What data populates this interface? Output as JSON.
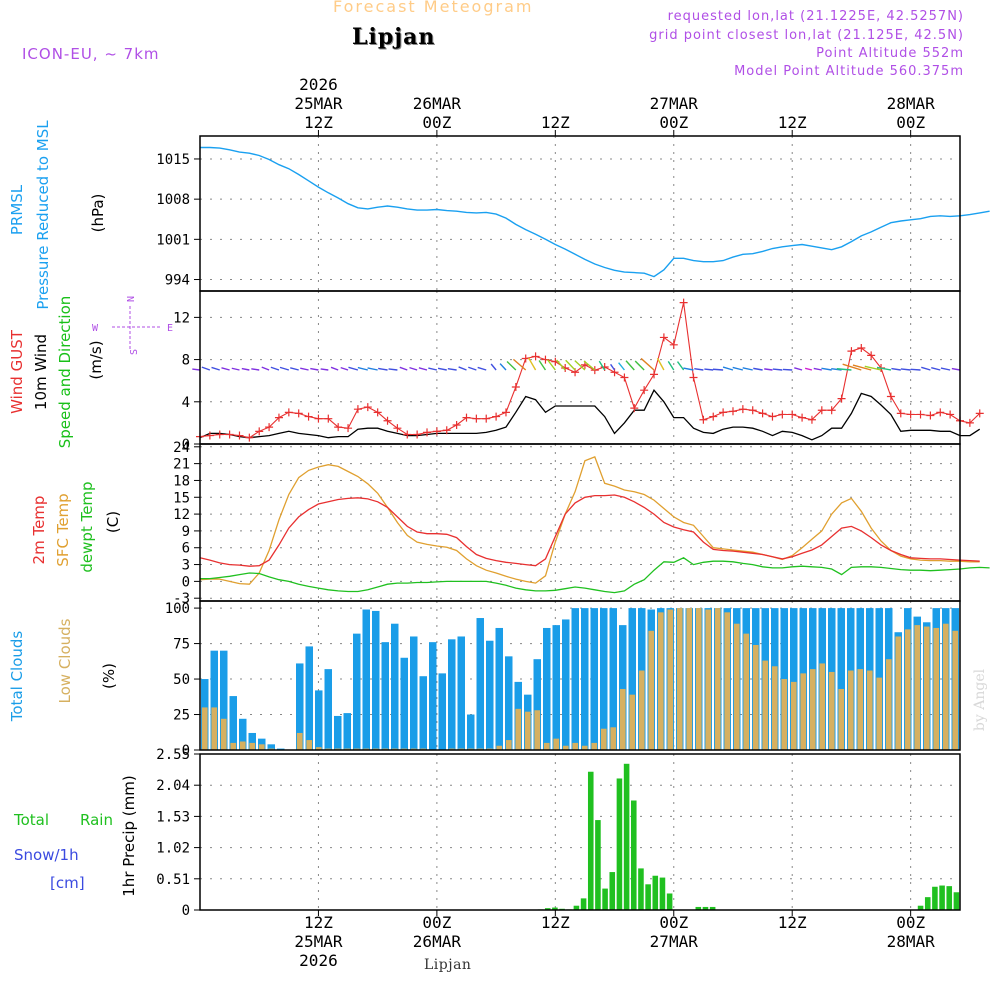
{
  "header": {
    "title": "Forecast Meteogram",
    "location": "Lipjan",
    "model": "ICON-EU, ~ 7km",
    "requested": "requested lon,lat (21.1225E, 42.5257N)",
    "gridpoint": "grid point closest lon,lat (21.125E, 42.5N)",
    "point_altitude": "Point Altitude 552m",
    "model_altitude": "Model Point Altitude 560.375m",
    "footer_location": "Lipjan",
    "watermark": "by Angel"
  },
  "colors": {
    "pressure": "#1aa0f0",
    "gust": "#e83030",
    "wind": "#000000",
    "direction_label": "#18c018",
    "temp2m": "#e83030",
    "sfc": "#e0a030",
    "dew": "#20c020",
    "total_clouds": "#1a9de8",
    "low_clouds": "#d6b060",
    "rain": "#20c020",
    "snow": "#3a4ae0",
    "title": "#ffcc88",
    "info": "#b04fe6"
  },
  "time_axis": {
    "top": [
      {
        "pos": 12,
        "lines": [
          "2026",
          "25MAR",
          "12Z"
        ]
      },
      {
        "pos": 24,
        "lines": [
          "26MAR",
          "00Z"
        ]
      },
      {
        "pos": 36,
        "lines": [
          "12Z"
        ]
      },
      {
        "pos": 48,
        "lines": [
          "27MAR",
          "00Z"
        ]
      },
      {
        "pos": 60,
        "lines": [
          "12Z"
        ]
      },
      {
        "pos": 72,
        "lines": [
          "28MAR",
          "00Z"
        ]
      }
    ],
    "bottom": [
      {
        "pos": 12,
        "lines": [
          "12Z",
          "25MAR",
          "2026"
        ]
      },
      {
        "pos": 24,
        "lines": [
          "00Z",
          "26MAR"
        ]
      },
      {
        "pos": 36,
        "lines": [
          "12Z"
        ]
      },
      {
        "pos": 48,
        "lines": [
          "00Z",
          "27MAR"
        ]
      },
      {
        "pos": 60,
        "lines": [
          "12Z"
        ]
      },
      {
        "pos": 72,
        "lines": [
          "00Z",
          "28MAR"
        ]
      }
    ]
  },
  "panel_labels": {
    "pressure": {
      "a": "PRMSL",
      "b": "Pressure Reduced to MSL",
      "unit": "(hPa)"
    },
    "wind": {
      "a": "Wind GUST",
      "b": "10m Wind",
      "c": "Speed and Direction",
      "unit": "(m/s)",
      "compass_n": "N",
      "compass_s": "S",
      "compass_w": "W",
      "compass_e": "E"
    },
    "temp": {
      "a": "2m Temp",
      "b": "SFC Temp",
      "c": "dewpt Temp",
      "unit": "(C)"
    },
    "clouds": {
      "a": "Total Clouds",
      "b": "Low Clouds",
      "unit": "(%)"
    },
    "precip": {
      "a": "Total",
      "a2": "Rain",
      "b": "Snow/1h",
      "c": "[cm]",
      "unit": "1hr Precip (mm)"
    }
  },
  "chart_data": [
    {
      "type": "line",
      "id": "pressure",
      "title": "PRMSL Pressure Reduced to MSL",
      "ylabel": "(hPa)",
      "ylim": [
        992,
        1019
      ],
      "yticks": [
        994,
        1001,
        1008,
        1015
      ],
      "x_hours_from_25MAR00Z": [
        0,
        77
      ],
      "series": [
        {
          "name": "PRMSL",
          "values": [
            1017.0,
            1017.0,
            1016.9,
            1016.6,
            1016.2,
            1016.0,
            1015.6,
            1014.9,
            1014.0,
            1013.3,
            1012.3,
            1011.2,
            1010.1,
            1009.1,
            1008.2,
            1007.2,
            1006.5,
            1006.3,
            1006.6,
            1006.8,
            1006.6,
            1006.3,
            1006.1,
            1006.1,
            1006.2,
            1006.0,
            1005.9,
            1005.7,
            1005.6,
            1005.7,
            1005.4,
            1004.7,
            1003.6,
            1002.7,
            1001.9,
            1001.0,
            1000.1,
            999.3,
            998.4,
            997.5,
            996.7,
            996.1,
            995.6,
            995.3,
            995.2,
            995.1,
            994.5,
            995.7,
            997.7,
            997.7,
            997.3,
            997.1,
            997.1,
            997.3,
            997.9,
            998.4,
            998.5,
            998.9,
            999.4,
            999.7,
            999.9,
            1000.1,
            999.8,
            999.5,
            999.2,
            999.7,
            1000.6,
            1001.6,
            1002.3,
            1003.1,
            1003.9,
            1004.2,
            1004.4,
            1004.6,
            1005.0,
            1005.1,
            1005.0,
            1005.1,
            1005.3,
            1005.6,
            1005.9
          ]
        }
      ]
    },
    {
      "type": "line",
      "id": "wind",
      "title": "Wind GUST / 10m Wind Speed and Direction",
      "ylabel": "(m/s)",
      "ylim": [
        0,
        14.5
      ],
      "yticks": [
        0,
        4,
        8,
        12
      ],
      "series": [
        {
          "name": "Wind GUST",
          "values": [
            0.7,
            0.8,
            0.9,
            0.9,
            0.8,
            0.6,
            1.2,
            1.6,
            2.5,
            3.0,
            2.9,
            2.6,
            2.4,
            2.4,
            1.6,
            1.5,
            3.3,
            3.5,
            3.0,
            2.2,
            1.5,
            0.9,
            0.9,
            1.1,
            1.2,
            1.3,
            1.8,
            2.5,
            2.4,
            2.4,
            2.6,
            3.0,
            5.4,
            8.1,
            8.3,
            8.0,
            7.8,
            7.2,
            6.8,
            7.5,
            7.0,
            7.3,
            6.8,
            6.3,
            3.4,
            5.1,
            6.6,
            10.1,
            9.4,
            13.4,
            6.3,
            2.3,
            2.6,
            3.0,
            3.1,
            3.3,
            3.2,
            2.9,
            2.6,
            2.8,
            2.8,
            2.5,
            2.3,
            3.2,
            3.2,
            4.3,
            8.8,
            9.1,
            8.4,
            7.2,
            4.5,
            2.9,
            2.8,
            2.8,
            2.7,
            3.0,
            2.8,
            2.2,
            2.0,
            2.9
          ]
        },
        {
          "name": "10m Wind",
          "values": [
            0.6,
            1.0,
            1.0,
            0.9,
            0.7,
            0.6,
            0.7,
            0.8,
            1.0,
            1.2,
            1.0,
            0.9,
            0.8,
            0.6,
            0.7,
            0.7,
            1.4,
            1.5,
            1.5,
            1.2,
            1.0,
            0.8,
            0.8,
            0.9,
            1.0,
            1.0,
            1.0,
            1.0,
            1.0,
            1.1,
            1.3,
            1.6,
            3.0,
            4.5,
            4.2,
            3.0,
            3.6,
            3.6,
            3.6,
            3.6,
            3.6,
            2.6,
            1.0,
            2.0,
            3.2,
            3.2,
            5.1,
            4.0,
            2.5,
            2.5,
            1.5,
            1.1,
            1.0,
            1.4,
            1.6,
            1.6,
            1.5,
            1.2,
            0.8,
            1.2,
            1.1,
            0.8,
            0.4,
            0.8,
            1.5,
            1.5,
            2.9,
            4.8,
            4.5,
            3.7,
            2.8,
            1.2,
            1.3,
            1.3,
            1.3,
            1.2,
            1.2,
            0.8,
            0.8,
            1.4
          ]
        }
      ]
    },
    {
      "type": "line",
      "id": "temperature",
      "title": "2m Temp / SFC Temp / dewpt Temp",
      "ylabel": "(C)",
      "ylim": [
        -3.5,
        24.5
      ],
      "yticks": [
        -3,
        0,
        3,
        6,
        9,
        12,
        15,
        18,
        21,
        24
      ],
      "series": [
        {
          "name": "2m Temp",
          "values": [
            4.2,
            3.8,
            3.3,
            3.0,
            2.9,
            2.7,
            2.8,
            3.8,
            6.5,
            9.5,
            11.5,
            12.8,
            13.8,
            14.2,
            14.6,
            14.8,
            14.9,
            14.7,
            14.2,
            13.2,
            11.5,
            9.8,
            8.8,
            8.5,
            8.5,
            8.4,
            7.8,
            6.2,
            4.8,
            4.1,
            3.7,
            3.4,
            3.2,
            3.0,
            2.8,
            4.0,
            8.0,
            12.0,
            14.0,
            15.0,
            15.3,
            15.3,
            15.4,
            15.0,
            14.2,
            13.2,
            12.0,
            10.5,
            9.7,
            9.2,
            8.8,
            7.0,
            5.7,
            5.5,
            5.4,
            5.2,
            5.0,
            4.8,
            4.4,
            4.0,
            4.4,
            5.0,
            5.6,
            6.5,
            8.0,
            9.5,
            9.8,
            9.0,
            7.8,
            6.5,
            5.5,
            4.8,
            4.2,
            4.1,
            4.0,
            4.0,
            3.9,
            3.8,
            3.7,
            3.6
          ]
        },
        {
          "name": "SFC Temp",
          "values": [
            0.3,
            0.4,
            0.4,
            0.0,
            -0.4,
            -0.5,
            1.5,
            5.5,
            11.0,
            15.5,
            18.5,
            19.8,
            20.4,
            20.8,
            20.5,
            19.6,
            18.7,
            17.4,
            15.7,
            13.2,
            10.5,
            8.2,
            7.0,
            6.6,
            6.3,
            6.1,
            5.5,
            4.0,
            2.8,
            2.0,
            1.5,
            0.9,
            0.4,
            0.0,
            -0.3,
            1.0,
            7.0,
            12.0,
            16.0,
            21.5,
            22.2,
            17.5,
            17.0,
            16.3,
            16.0,
            15.5,
            14.5,
            13.0,
            11.5,
            10.5,
            10.0,
            8.0,
            6.0,
            5.8,
            5.6,
            5.4,
            5.2,
            4.8,
            4.4,
            3.9,
            4.6,
            6.0,
            7.5,
            9.0,
            12.0,
            14.0,
            14.8,
            12.5,
            9.5,
            7.2,
            5.5,
            4.5,
            4.0,
            3.8,
            3.7,
            3.7,
            3.6,
            3.6,
            3.5,
            3.5
          ]
        },
        {
          "name": "dewpt Temp",
          "values": [
            0.5,
            0.5,
            0.7,
            0.9,
            1.2,
            1.5,
            1.4,
            0.8,
            0.3,
            0.0,
            -0.5,
            -0.9,
            -1.2,
            -1.5,
            -1.7,
            -1.8,
            -1.8,
            -1.5,
            -1.0,
            -0.5,
            -0.3,
            -0.3,
            -0.2,
            -0.2,
            -0.1,
            0.0,
            0.0,
            0.0,
            0.0,
            0.0,
            -0.3,
            -0.7,
            -1.2,
            -1.5,
            -1.7,
            -1.7,
            -1.6,
            -1.3,
            -1.0,
            -1.2,
            -1.5,
            -1.8,
            -2.0,
            -1.7,
            -0.5,
            0.3,
            2.0,
            3.5,
            3.4,
            4.2,
            3.0,
            3.4,
            3.6,
            3.6,
            3.5,
            3.2,
            3.0,
            2.6,
            2.4,
            2.4,
            2.6,
            2.7,
            2.6,
            2.5,
            2.2,
            1.2,
            2.5,
            2.6,
            2.6,
            2.5,
            2.3,
            2.1,
            2.0,
            2.0,
            1.9,
            2.0,
            2.1,
            2.2,
            2.4,
            2.5,
            2.4
          ]
        }
      ]
    },
    {
      "type": "bar",
      "id": "clouds",
      "title": "Total Clouds / Low Clouds",
      "ylabel": "(%)",
      "ylim": [
        0,
        105
      ],
      "yticks": [
        0,
        25,
        50,
        75,
        100
      ],
      "series": [
        {
          "name": "Total Clouds",
          "values": [
            50,
            70,
            70,
            38,
            22,
            12,
            8,
            4,
            1,
            0,
            61,
            73,
            42,
            57,
            24,
            26,
            82,
            99,
            98,
            76,
            89,
            65,
            80,
            52,
            76,
            54,
            78,
            80,
            25,
            93,
            77,
            86,
            66,
            48,
            39,
            64,
            86,
            88,
            92,
            100,
            100,
            100,
            100,
            100,
            88,
            100,
            100,
            99,
            100,
            100,
            100,
            100,
            100,
            100,
            100,
            100,
            100,
            100,
            100,
            100,
            100,
            100,
            100,
            100,
            100,
            100,
            100,
            100,
            100,
            100,
            100,
            100,
            100,
            83,
            100,
            94,
            90,
            100,
            100,
            100
          ]
        },
        {
          "name": "Low Clouds",
          "values": [
            30,
            30,
            22,
            5,
            6,
            5,
            4,
            1,
            0,
            0,
            12,
            7,
            2,
            1,
            1,
            1,
            1,
            1,
            1,
            1,
            1,
            1,
            1,
            1,
            0,
            0,
            1,
            1,
            1,
            1,
            1,
            3,
            7,
            29,
            27,
            28,
            5,
            8,
            3,
            5,
            3,
            5,
            15,
            16,
            43,
            39,
            56,
            84,
            97,
            99,
            100,
            100,
            100,
            99,
            100,
            97,
            89,
            82,
            74,
            63,
            59,
            50,
            48,
            54,
            57,
            61,
            55,
            43,
            56,
            57,
            56,
            51,
            64,
            80,
            85,
            88,
            87,
            86,
            89,
            84
          ]
        }
      ]
    },
    {
      "type": "bar",
      "id": "precip",
      "title": "1hr Precip (mm) Total Rain / Snow",
      "ylabel": "1hr Precip (mm)",
      "ylim": [
        0,
        2.55
      ],
      "yticks": [
        0,
        0.51,
        1.02,
        1.53,
        2.04,
        2.55
      ],
      "series": [
        {
          "name": "Total Rain",
          "values": [
            0,
            0,
            0,
            0,
            0,
            0,
            0,
            0,
            0,
            0,
            0,
            0,
            0,
            0,
            0,
            0,
            0,
            0,
            0,
            0,
            0,
            0,
            0,
            0,
            0,
            0,
            0,
            0,
            0,
            0,
            0,
            0,
            0,
            0,
            0,
            0,
            0,
            0,
            0,
            0,
            0,
            0,
            0,
            0,
            0,
            0,
            0,
            0.01,
            0.03,
            0.04,
            0.02,
            0.01,
            0.07,
            0.19,
            2.26,
            1.47,
            0.35,
            0.62,
            2.15,
            2.39,
            1.79,
            0.68,
            0.42,
            0.56,
            0.53,
            0.27,
            0,
            0,
            0,
            0.05,
            0.05,
            0.05,
            0,
            0,
            0,
            0,
            0,
            0,
            0,
            0,
            0,
            0,
            0,
            0,
            0,
            0,
            0,
            0,
            0,
            0,
            0,
            0,
            0,
            0,
            0,
            0,
            0,
            0,
            0,
            0,
            0.07,
            0.21,
            0.38,
            0.4,
            0.39,
            0.29
          ]
        },
        {
          "name": "Snow",
          "values": []
        }
      ]
    }
  ]
}
